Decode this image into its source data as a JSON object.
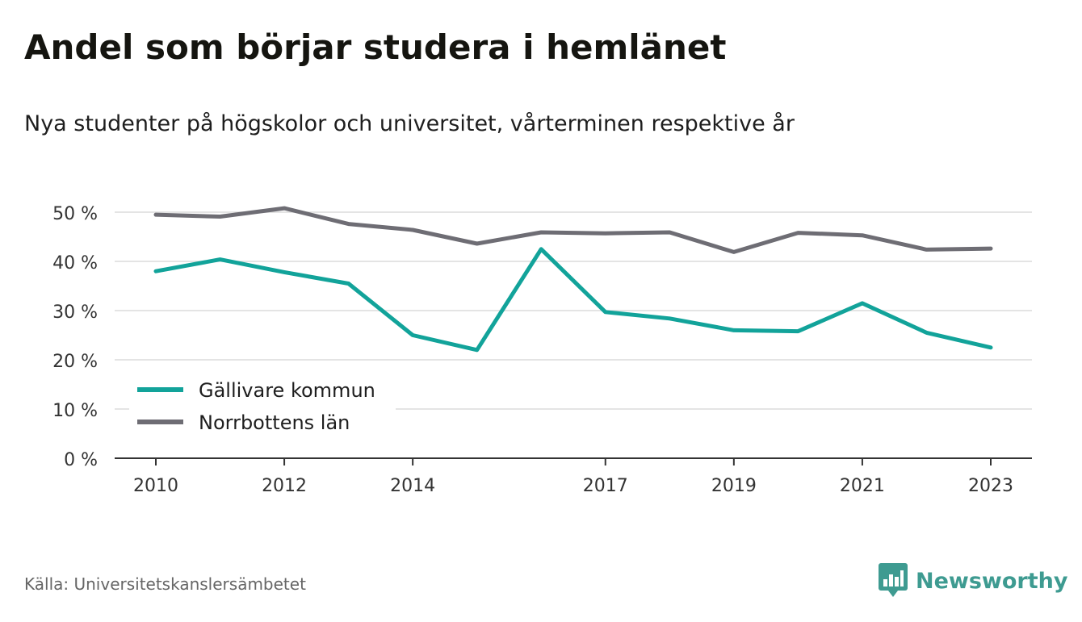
{
  "header": {
    "title": "Andel som börjar studera i hemlänet",
    "subtitle": "Nya studenter på högskolor och universitet, vårterminen respektive år"
  },
  "footer": {
    "source": "Källa: Universitetskanslersämbetet",
    "brand": "Newsworthy"
  },
  "colors": {
    "series_1": "#12a39a",
    "series_2": "#6e6d74",
    "grid": "#dcdcdc",
    "axis": "#333333",
    "brand": "#3e9b91"
  },
  "icons": {
    "brand_logo": "newsworthy-bar-chart-icon"
  },
  "chart_data": {
    "type": "line",
    "x": [
      2010,
      2011,
      2012,
      2013,
      2014,
      2015,
      2016,
      2017,
      2018,
      2019,
      2020,
      2021,
      2022,
      2023
    ],
    "xticks": [
      2010,
      2012,
      2014,
      2017,
      2019,
      2021,
      2023
    ],
    "xtick_labels": [
      "2010",
      "2012",
      "2014",
      "2017",
      "2019",
      "2021",
      "2023"
    ],
    "yticks": [
      0,
      10,
      20,
      30,
      40,
      50
    ],
    "ytick_labels": [
      "0 %",
      "10 %",
      "20 %",
      "30 %",
      "40 %",
      "50 %"
    ],
    "ylim": [
      0,
      50
    ],
    "grid": true,
    "legend_position": "bottom-left",
    "series": [
      {
        "name": "Gällivare kommun",
        "color": "#12a39a",
        "values": [
          38.0,
          40.4,
          37.8,
          35.5,
          25.0,
          22.0,
          42.5,
          29.7,
          28.4,
          26.0,
          25.8,
          31.5,
          25.5,
          22.5
        ]
      },
      {
        "name": "Norrbottens län",
        "color": "#6e6d74",
        "values": [
          49.5,
          49.1,
          50.8,
          47.6,
          46.4,
          43.6,
          45.9,
          45.7,
          45.9,
          41.9,
          45.8,
          45.3,
          42.4,
          42.6
        ]
      }
    ]
  }
}
